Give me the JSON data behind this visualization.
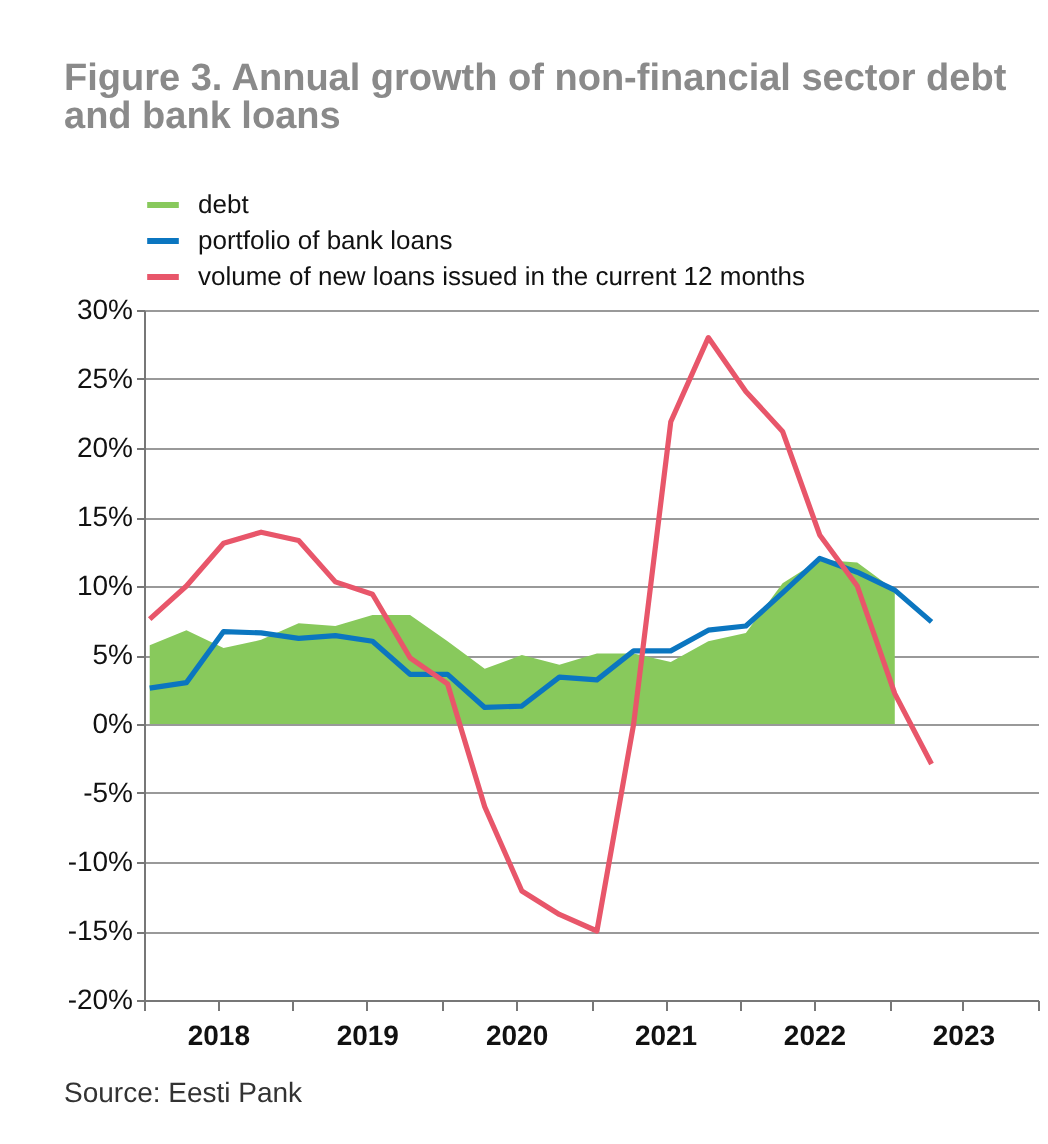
{
  "chart_data": {
    "type": "line",
    "title": "Figure 3. Annual growth of non-financial sector debt and bank loans",
    "x": [
      "2018-01-15",
      "2018-04-15",
      "2018-07-15",
      "2018-10-15",
      "2019-01-15",
      "2019-04-15",
      "2019-07-15",
      "2019-10-15",
      "2020-01-15",
      "2020-04-15",
      "2020-07-15",
      "2020-10-15",
      "2021-01-15",
      "2021-04-15",
      "2021-07-15",
      "2021-10-15",
      "2022-01-15",
      "2022-04-15",
      "2022-07-15",
      "2022-10-15",
      "2023-01-15",
      "2023-04-15"
    ],
    "series": [
      {
        "name": "debt",
        "type": "area",
        "color": "#88c95c",
        "values": [
          5.7,
          6.8,
          5.5,
          6.1,
          7.3,
          7.1,
          7.9,
          7.9,
          6.0,
          4.0,
          5.0,
          4.3,
          5.1,
          5.1,
          4.5,
          6.0,
          6.6,
          10.2,
          11.9,
          11.7,
          9.7,
          null
        ]
      },
      {
        "name": "portfolio of bank loans",
        "color": "#0b76c0",
        "values": [
          2.6,
          3.0,
          6.7,
          6.6,
          6.2,
          6.4,
          6.0,
          3.6,
          3.6,
          1.2,
          1.3,
          3.4,
          3.2,
          5.3,
          5.3,
          6.8,
          7.1,
          9.5,
          12.0,
          11.0,
          9.7,
          7.4
        ]
      },
      {
        "name": "volume of new loans issued in the current 12 months",
        "color": "#e8566a",
        "values": [
          7.6,
          10.0,
          13.1,
          13.9,
          13.3,
          10.3,
          9.4,
          4.8,
          2.9,
          -6.0,
          -12.1,
          -13.8,
          -15.0,
          0.0,
          21.9,
          28.0,
          24.1,
          21.2,
          13.7,
          10.0,
          2.2,
          -2.9
        ]
      }
    ],
    "xlim": [
      "2018-01-01",
      "2024-01-01"
    ],
    "xticks": [
      {
        "value": "2018-01-01",
        "label": null
      },
      {
        "value": "2018-07-01",
        "label": "2018"
      },
      {
        "value": "2019-01-01",
        "label": null
      },
      {
        "value": "2019-07-01",
        "label": "2019"
      },
      {
        "value": "2020-01-01",
        "label": null
      },
      {
        "value": "2020-07-01",
        "label": "2020"
      },
      {
        "value": "2021-01-01",
        "label": null
      },
      {
        "value": "2021-07-01",
        "label": "2021"
      },
      {
        "value": "2022-01-01",
        "label": null
      },
      {
        "value": "2022-07-01",
        "label": "2022"
      },
      {
        "value": "2023-01-01",
        "label": null
      },
      {
        "value": "2023-07-01",
        "label": "2023"
      },
      {
        "value": "2024-01-01",
        "label": null
      }
    ],
    "ylim": [
      -20,
      30
    ],
    "yticks": [
      {
        "value": -20,
        "label": "-20%"
      },
      {
        "value": -15,
        "label": "-15%"
      },
      {
        "value": -10,
        "label": "-10%"
      },
      {
        "value": -5,
        "label": "-5%"
      },
      {
        "value": 0,
        "label": "0%"
      },
      {
        "value": 5,
        "label": "5%"
      },
      {
        "value": 10,
        "label": "10%"
      },
      {
        "value": 15,
        "label": "15%"
      },
      {
        "value": 20,
        "label": "20%"
      },
      {
        "value": 25,
        "label": "25%"
      },
      {
        "value": 30,
        "label": "30%"
      }
    ],
    "grid": "y",
    "legend": "top left",
    "line_style": "solid",
    "annotations": [
      "Source: Eesti Pank"
    ]
  }
}
